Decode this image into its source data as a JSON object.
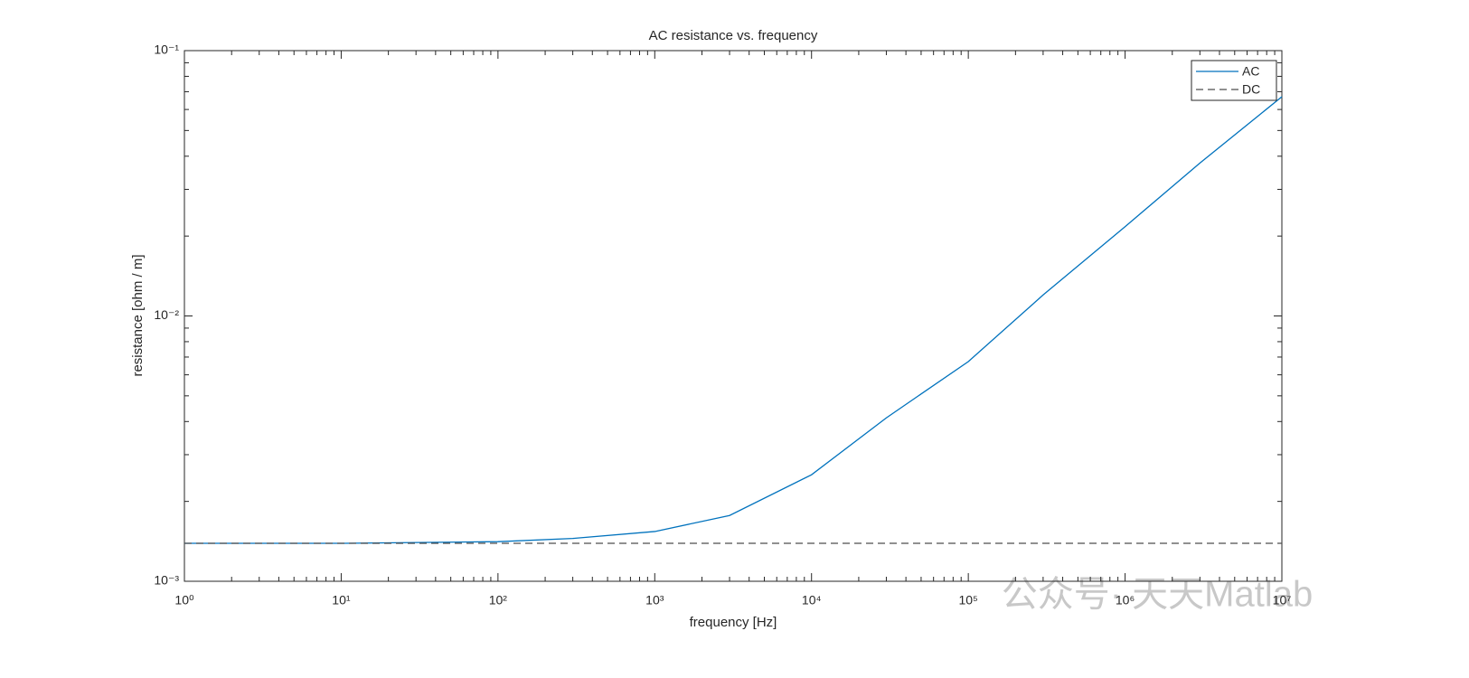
{
  "chart_data": {
    "type": "line",
    "title": "AC resistance vs. frequency",
    "xlabel": "frequency [Hz]",
    "ylabel": "resistance  [ohm / m]",
    "xscale": "log",
    "yscale": "log",
    "grid": false,
    "legend": "northeast",
    "xlim": [
      1,
      10000000
    ],
    "ylim": [
      0.001,
      0.1
    ],
    "xticks": [
      {
        "value": 1,
        "label": "10⁰"
      },
      {
        "value": 10,
        "label": "10¹"
      },
      {
        "value": 100,
        "label": "10²"
      },
      {
        "value": 1000,
        "label": "10³"
      },
      {
        "value": 10000,
        "label": "10⁴"
      },
      {
        "value": 100000,
        "label": "10⁵"
      },
      {
        "value": 1000000,
        "label": "10⁶"
      },
      {
        "value": 10000000,
        "label": "10⁷"
      }
    ],
    "yticks": [
      {
        "value": 0.001,
        "label": "10⁻³"
      },
      {
        "value": 0.01,
        "label": "10⁻²"
      },
      {
        "value": 0.1,
        "label": "10⁻¹"
      }
    ],
    "series": [
      {
        "name": "AC",
        "color": "#0072bd",
        "linestyle": "solid",
        "x": [
          1,
          10,
          100,
          300,
          1000,
          3000,
          10000,
          30000,
          100000,
          300000,
          1000000,
          3000000,
          10000000
        ],
        "values": [
          0.00139,
          0.00139,
          0.00141,
          0.00145,
          0.00154,
          0.00177,
          0.00252,
          0.00413,
          0.00673,
          0.012,
          0.0217,
          0.0377,
          0.067
        ]
      },
      {
        "name": "DC",
        "color": "#4d4d4d",
        "linestyle": "dashed",
        "x": [
          1,
          10000000
        ],
        "values": [
          0.00139,
          0.00139
        ]
      }
    ],
    "watermark": "公众号· 天天Matlab"
  }
}
